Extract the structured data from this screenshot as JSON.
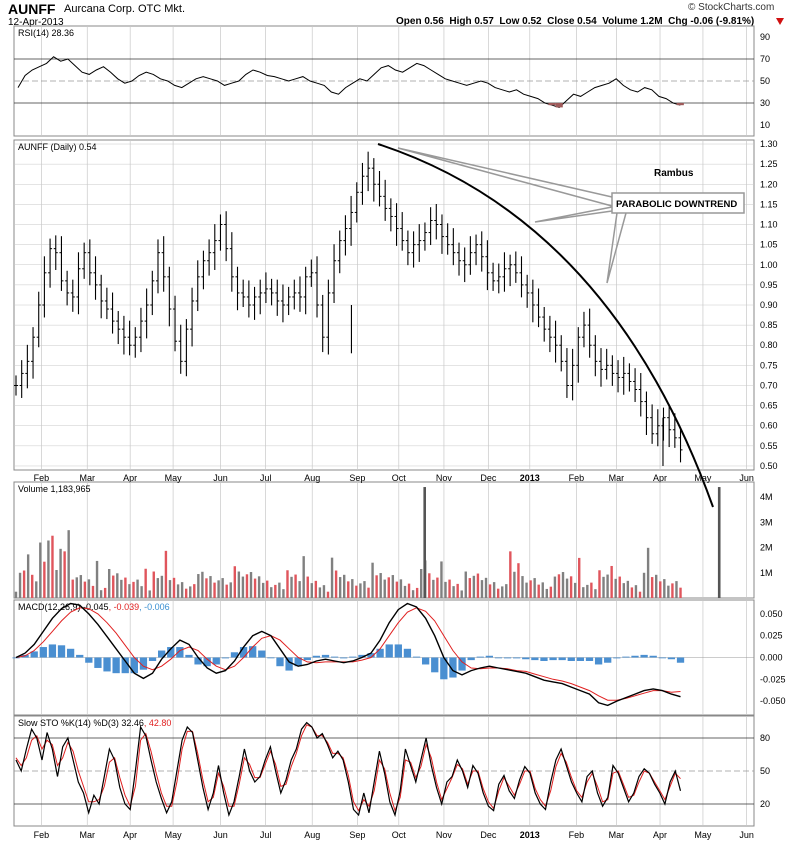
{
  "header": {
    "symbol": "AUNFF",
    "company": "Aurcana Corp. OTC Mkt.",
    "date": "12-Apr-2013",
    "ohlc_text": "Open 0.56  High 0.57  Low 0.52  Close 0.54  Volume 1.2M  Chg -0.06 (-9.81%)",
    "watermark": "© StockCharts.com"
  },
  "colors": {
    "up": "#c8333b",
    "down": "#000000",
    "volume_up": "#e0555c",
    "volume_down": "#808080",
    "macd_hist": "#4a8fd1",
    "signal": "#e02020",
    "grid": "#c8c8c8",
    "rsi_shade": "#9e5a5a"
  },
  "chart_data": [
    {
      "panel": "rsi",
      "type": "line",
      "label": "RSI(14) 28.36",
      "ylim": [
        0,
        100
      ],
      "y_ticks": [
        10,
        30,
        50,
        70,
        90
      ],
      "reference_lines": [
        30,
        50,
        70
      ],
      "series": [
        {
          "values": [
            44,
            55,
            60,
            63,
            66,
            72,
            68,
            70,
            64,
            58,
            56,
            60,
            63,
            58,
            52,
            48,
            50,
            55,
            58,
            56,
            52,
            50,
            46,
            44,
            48,
            52,
            54,
            52,
            50,
            46,
            48,
            50,
            56,
            60,
            58,
            55,
            54,
            52,
            50,
            52,
            54,
            50,
            48,
            46,
            40,
            38,
            44,
            48,
            52,
            50,
            56,
            62,
            64,
            60,
            58,
            62,
            66,
            64,
            60,
            56,
            52,
            50,
            48,
            46,
            48,
            50,
            48,
            44,
            42,
            40,
            42,
            38,
            36,
            34,
            30,
            28,
            26,
            32,
            38,
            36,
            40,
            44,
            46,
            48,
            52,
            46,
            42,
            40,
            44,
            42,
            36,
            34,
            30,
            28
          ]
        }
      ]
    },
    {
      "panel": "price",
      "type": "ohlc",
      "label": "AUNFF (Daily) 0.54",
      "ylim": [
        0.49,
        1.31
      ],
      "y_ticks": [
        0.5,
        0.55,
        0.6,
        0.65,
        0.7,
        0.75,
        0.8,
        0.85,
        0.9,
        0.95,
        1.0,
        1.05,
        1.1,
        1.15,
        1.2,
        1.25,
        1.3
      ],
      "x_ticks": [
        "Feb",
        "Mar",
        "Apr",
        "May",
        "Jun",
        "Jul",
        "Aug",
        "Sep",
        "Oct",
        "Nov",
        "Dec",
        "2013",
        "Feb",
        "Mar",
        "Apr",
        "May",
        "Jun"
      ],
      "closes": [
        0.7,
        0.73,
        0.76,
        0.82,
        0.9,
        0.98,
        1.04,
        1.03,
        0.96,
        0.93,
        0.92,
        0.99,
        1.03,
        0.98,
        0.95,
        0.91,
        0.89,
        0.86,
        0.84,
        0.82,
        0.8,
        0.82,
        0.86,
        0.9,
        0.96,
        1.03,
        0.97,
        0.89,
        0.81,
        0.76,
        0.84,
        0.91,
        0.97,
        1.01,
        1.03,
        1.06,
        1.1,
        1.04,
        0.97,
        0.93,
        0.92,
        0.9,
        0.92,
        0.93,
        0.94,
        0.93,
        0.91,
        0.9,
        0.92,
        0.93,
        0.92,
        0.97,
        0.98,
        0.9,
        0.82,
        0.93,
        1.01,
        1.06,
        1.09,
        1.13,
        1.18,
        1.22,
        1.24,
        1.2,
        1.17,
        1.14,
        1.12,
        1.09,
        1.06,
        1.03,
        1.05,
        1.06,
        1.08,
        1.11,
        1.1,
        1.07,
        1.05,
        1.03,
        1.01,
        1.0,
        1.03,
        1.05,
        1.02,
        0.98,
        0.96,
        0.97,
        0.99,
        1.0,
        0.98,
        0.95,
        0.93,
        0.9,
        0.87,
        0.84,
        0.82,
        0.8,
        0.76,
        0.7,
        0.75,
        0.82,
        0.85,
        0.8,
        0.76,
        0.74,
        0.75,
        0.73,
        0.72,
        0.73,
        0.71,
        0.69,
        0.66,
        0.62,
        0.58,
        0.6,
        0.62,
        0.59,
        0.57,
        0.54
      ],
      "annotations": {
        "author": "Rambus",
        "callout": "PARABOLIC DOWNTREND"
      }
    },
    {
      "panel": "volume",
      "type": "bar",
      "label": "Volume 1,183,965",
      "ylim": [
        0,
        4600000
      ],
      "y_ticks": [
        "1M",
        "2M",
        "3M",
        "4M"
      ],
      "y_tick_values": [
        1000000,
        2000000,
        3000000,
        4000000
      ],
      "spikes": [
        {
          "position": 0.555,
          "value": 4400000
        },
        {
          "position": 0.953,
          "value": 4400000
        }
      ]
    },
    {
      "panel": "macd",
      "type": "line",
      "label": "MACD(12,26,9) -0.045, -0.039, -0.006",
      "legend": [
        "MACD(12,26,9)",
        "-0.045",
        "-0.039",
        "-0.006"
      ],
      "ylim": [
        -0.066,
        0.066
      ],
      "y_ticks": [
        -0.05,
        -0.025,
        0.0,
        0.025,
        0.05
      ],
      "y_tick_labels": [
        "-0.050",
        "-0.025",
        "0.000",
        "0.025",
        "0.050"
      ],
      "series": [
        {
          "name": "MACD",
          "values": [
            0.0,
            0.005,
            0.015,
            0.03,
            0.045,
            0.056,
            0.062,
            0.06,
            0.05,
            0.038,
            0.024,
            0.01,
            -0.004,
            -0.018,
            -0.024,
            -0.018,
            -0.002,
            0.01,
            0.02,
            0.015,
            0.0,
            -0.012,
            -0.018,
            -0.015,
            -0.004,
            0.012,
            0.025,
            0.03,
            0.025,
            0.01,
            -0.005,
            -0.01,
            -0.008,
            -0.004,
            -0.002,
            -0.004,
            -0.006,
            -0.004,
            0.0,
            0.005,
            0.02,
            0.04,
            0.055,
            0.062,
            0.058,
            0.045,
            0.025,
            0.0,
            -0.015,
            -0.02,
            -0.015,
            -0.012,
            -0.01,
            -0.012,
            -0.014,
            -0.016,
            -0.018,
            -0.022,
            -0.026,
            -0.028,
            -0.03,
            -0.034,
            -0.038,
            -0.042,
            -0.052,
            -0.055,
            -0.05,
            -0.046,
            -0.042,
            -0.038,
            -0.036,
            -0.038,
            -0.042,
            -0.045
          ]
        },
        {
          "name": "Signal",
          "values": [
            0.0,
            0.002,
            0.008,
            0.018,
            0.03,
            0.042,
            0.052,
            0.057,
            0.056,
            0.05,
            0.04,
            0.028,
            0.014,
            0.0,
            -0.01,
            -0.014,
            -0.01,
            -0.002,
            0.008,
            0.012,
            0.008,
            -0.002,
            -0.01,
            -0.014,
            -0.01,
            0.0,
            0.012,
            0.022,
            0.025,
            0.02,
            0.01,
            0.0,
            -0.005,
            -0.006,
            -0.005,
            -0.005,
            -0.005,
            -0.005,
            -0.003,
            0.0,
            0.01,
            0.025,
            0.04,
            0.052,
            0.057,
            0.053,
            0.042,
            0.025,
            0.008,
            -0.005,
            -0.012,
            -0.013,
            -0.012,
            -0.012,
            -0.013,
            -0.015,
            -0.016,
            -0.019,
            -0.022,
            -0.025,
            -0.027,
            -0.03,
            -0.034,
            -0.038,
            -0.044,
            -0.049,
            -0.049,
            -0.047,
            -0.044,
            -0.041,
            -0.038,
            -0.038,
            -0.04,
            -0.039
          ]
        }
      ]
    },
    {
      "panel": "stochastic",
      "type": "line",
      "label": "Slow STO %K(14) %D(3) 32.46, 42.80",
      "legend": [
        "Slow STO %K(14) %D(3)",
        "32.46",
        "42.80"
      ],
      "ylim": [
        0,
        100
      ],
      "y_ticks": [
        20,
        50,
        80
      ],
      "reference_lines": [
        20,
        50,
        80
      ],
      "series": [
        {
          "name": "%K",
          "values": [
            60,
            50,
            70,
            88,
            80,
            60,
            85,
            70,
            45,
            72,
            80,
            60,
            40,
            30,
            12,
            28,
            20,
            45,
            70,
            60,
            35,
            20,
            15,
            50,
            90,
            82,
            60,
            40,
            25,
            12,
            22,
            50,
            78,
            90,
            85,
            60,
            35,
            15,
            30,
            55,
            30,
            10,
            22,
            45,
            70,
            50,
            40,
            45,
            60,
            72,
            50,
            30,
            42,
            60,
            70,
            88,
            94,
            90,
            80,
            84,
            74,
            62,
            68,
            60,
            40,
            15,
            10,
            30,
            12,
            40,
            68,
            48,
            22,
            10,
            32,
            70,
            55,
            40,
            60,
            80,
            55,
            35,
            20,
            40,
            45,
            60,
            50,
            35,
            55,
            48,
            30,
            18,
            14,
            38,
            46,
            32,
            25,
            42,
            54,
            48,
            30,
            20,
            15,
            40,
            60,
            70,
            55,
            40,
            30,
            22,
            45,
            50,
            30,
            18,
            26,
            55,
            48,
            35,
            22,
            30,
            45,
            52,
            48,
            38,
            30,
            20,
            40,
            50,
            32
          ]
        },
        {
          "name": "%D",
          "values": [
            62,
            55,
            62,
            78,
            82,
            70,
            78,
            74,
            55,
            62,
            76,
            68,
            50,
            36,
            22,
            22,
            24,
            36,
            58,
            62,
            44,
            28,
            18,
            36,
            78,
            84,
            68,
            48,
            30,
            18,
            18,
            40,
            70,
            86,
            86,
            66,
            42,
            22,
            26,
            48,
            36,
            18,
            18,
            38,
            62,
            56,
            44,
            44,
            56,
            68,
            56,
            36,
            38,
            54,
            66,
            82,
            92,
            90,
            82,
            82,
            76,
            66,
            66,
            62,
            46,
            22,
            14,
            24,
            18,
            32,
            60,
            52,
            30,
            14,
            26,
            60,
            58,
            44,
            54,
            74,
            62,
            40,
            24,
            34,
            44,
            56,
            52,
            38,
            50,
            50,
            34,
            22,
            16,
            32,
            44,
            36,
            28,
            38,
            50,
            50,
            34,
            24,
            18,
            32,
            54,
            66,
            58,
            44,
            32,
            26,
            40,
            48,
            36,
            22,
            24,
            48,
            50,
            38,
            26,
            28,
            40,
            50,
            48,
            40,
            32,
            24,
            36,
            48,
            43
          ]
        }
      ]
    }
  ]
}
